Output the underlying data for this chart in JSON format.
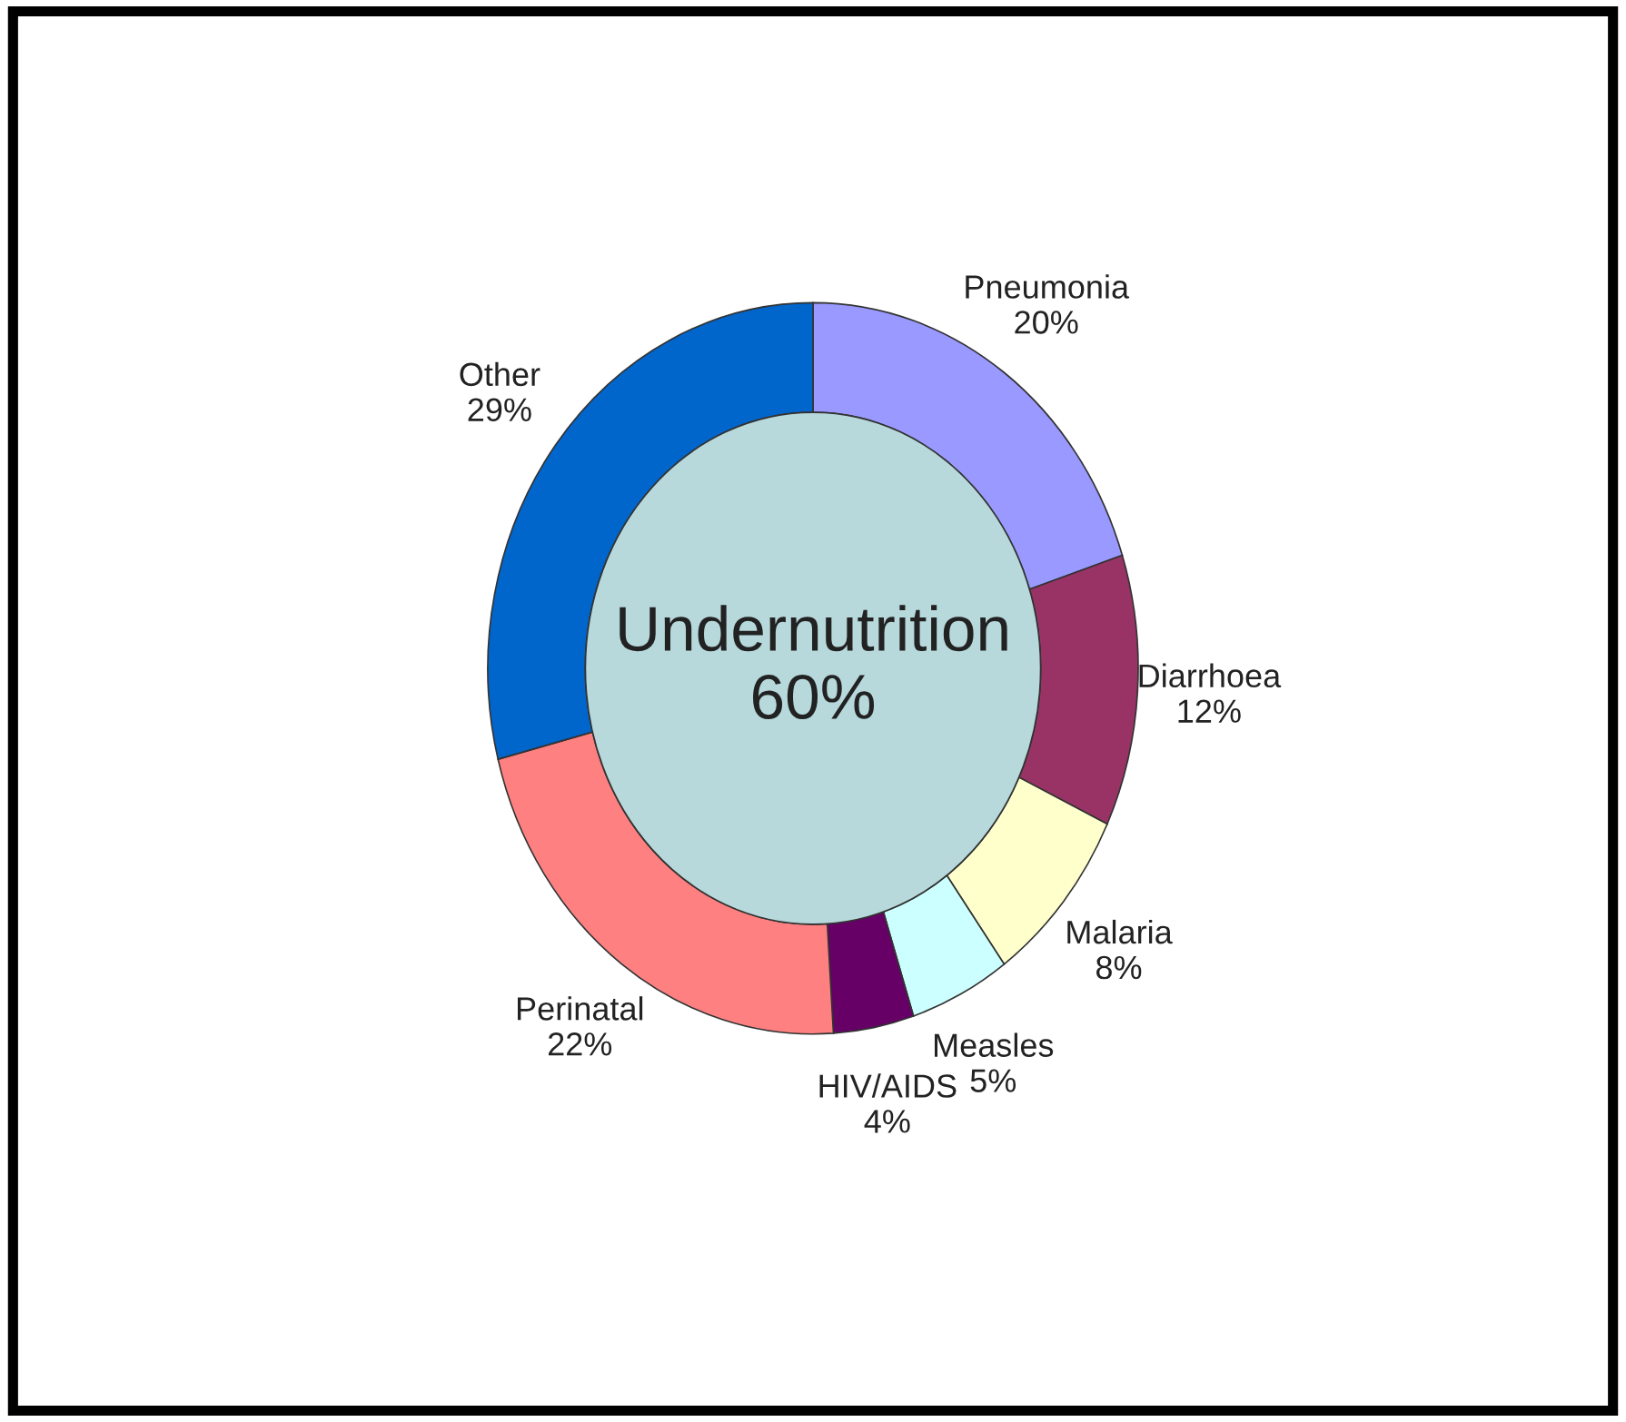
{
  "chart_data": {
    "type": "donut",
    "categories": [
      "Pneumonia",
      "Diarrhoea",
      "Malaria",
      "Measles",
      "HIV/AIDS",
      "Perinatal",
      "Other"
    ],
    "values": [
      20,
      12,
      8,
      5,
      4,
      22,
      29
    ],
    "value_labels": [
      "20%",
      "12%",
      "8%",
      "5%",
      "4%",
      "22%",
      "29%"
    ],
    "colors": [
      "#9999ff",
      "#993366",
      "#ffffcc",
      "#ccffff",
      "#660066",
      "#ff8080",
      "#0066cc"
    ],
    "annotations": [
      "Undernutrition\n60%"
    ]
  }
}
